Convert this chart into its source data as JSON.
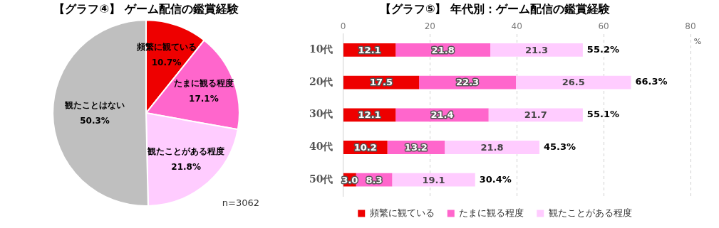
{
  "chart_data": [
    {
      "type": "pie",
      "title": "【グラフ④】 ゲーム配信の鑑賞経験",
      "categories": [
        "頻繁に観ている",
        "たまに観る程度",
        "観たことがある程度",
        "観たことはない"
      ],
      "values": [
        10.7,
        17.1,
        21.8,
        50.3
      ],
      "value_labels": [
        "10.7%",
        "17.1%",
        "21.8%",
        "50.3%"
      ],
      "colors": [
        "#ee0000",
        "#ff66cc",
        "#ffccff",
        "#bfbfbf"
      ],
      "annotations": [
        "n=3062"
      ]
    },
    {
      "type": "bar",
      "orientation": "horizontal",
      "stacked": true,
      "title": "【グラフ⑤】 年代別：ゲーム配信の鑑賞経験",
      "categories": [
        "10代",
        "20代",
        "30代",
        "40代",
        "50代"
      ],
      "series": [
        {
          "name": "頻繁に観ている",
          "color": "#ee0000",
          "values": [
            12.1,
            17.5,
            12.1,
            10.2,
            3.0
          ],
          "value_labels": [
            "12.1",
            "17.5",
            "12.1",
            "10.2",
            "3.0"
          ]
        },
        {
          "name": "たまに観る程度",
          "color": "#ff66cc",
          "values": [
            21.8,
            22.3,
            21.4,
            13.2,
            8.3
          ],
          "value_labels": [
            "21.8",
            "22.3",
            "21.4",
            "13.2",
            "8.3"
          ]
        },
        {
          "name": "観たことがある程度",
          "color": "#ffccff",
          "values": [
            21.3,
            26.5,
            21.7,
            21.8,
            19.1
          ],
          "value_labels": [
            "21.3",
            "26.5",
            "21.7",
            "21.8",
            "19.1"
          ]
        }
      ],
      "totals": [
        "55.2%",
        "66.3%",
        "55.1%",
        "45.3%",
        "30.4%"
      ],
      "xlim": [
        0,
        80
      ],
      "xticks": [
        0,
        20,
        40,
        60,
        80
      ],
      "xlabel": "%",
      "grid": "x",
      "legend": "bottom"
    }
  ]
}
